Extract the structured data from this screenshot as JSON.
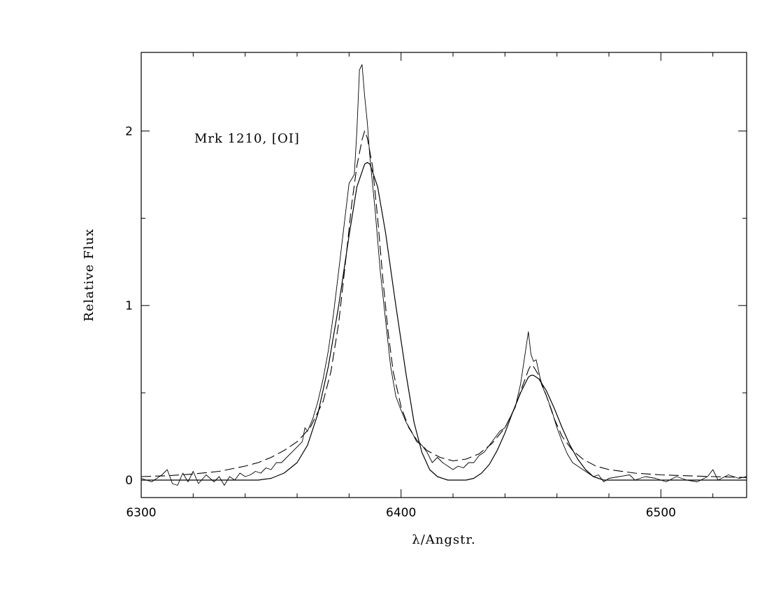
{
  "chart_data": {
    "type": "line",
    "title": "",
    "annotation": "Mrk  1210,  [OI]",
    "xlabel": "λ/Angstr.",
    "ylabel": "Relative  Flux",
    "xlim": [
      6300,
      6533
    ],
    "ylim": [
      -0.1,
      2.45
    ],
    "x_ticks": [
      6300,
      6400,
      6500
    ],
    "y_ticks": [
      0,
      1,
      2
    ],
    "x_minor_step": 20,
    "y_minor_step": 0.5,
    "grid": false,
    "series": [
      {
        "style": "solid-thin",
        "points": [
          [
            6300,
            0.01
          ],
          [
            6304,
            -0.01
          ],
          [
            6308,
            0.03
          ],
          [
            6310,
            0.06
          ],
          [
            6312,
            -0.02
          ],
          [
            6314,
            -0.03
          ],
          [
            6316,
            0.04
          ],
          [
            6318,
            -0.01
          ],
          [
            6320,
            0.05
          ],
          [
            6322,
            -0.02
          ],
          [
            6325,
            0.03
          ],
          [
            6328,
            -0.01
          ],
          [
            6330,
            0.02
          ],
          [
            6332,
            -0.03
          ],
          [
            6334,
            0.02
          ],
          [
            6336,
            0.0
          ],
          [
            6338,
            0.04
          ],
          [
            6340,
            0.02
          ],
          [
            6342,
            0.03
          ],
          [
            6344,
            0.05
          ],
          [
            6346,
            0.04
          ],
          [
            6348,
            0.07
          ],
          [
            6350,
            0.06
          ],
          [
            6352,
            0.1
          ],
          [
            6354,
            0.1
          ],
          [
            6356,
            0.13
          ],
          [
            6358,
            0.16
          ],
          [
            6360,
            0.19
          ],
          [
            6362,
            0.22
          ],
          [
            6363,
            0.3
          ],
          [
            6364,
            0.28
          ],
          [
            6366,
            0.35
          ],
          [
            6368,
            0.45
          ],
          [
            6370,
            0.58
          ],
          [
            6372,
            0.74
          ],
          [
            6374,
            0.95
          ],
          [
            6376,
            1.2
          ],
          [
            6378,
            1.45
          ],
          [
            6380,
            1.7
          ],
          [
            6382,
            1.75
          ],
          [
            6383,
            2.0
          ],
          [
            6384,
            2.35
          ],
          [
            6385,
            2.38
          ],
          [
            6386,
            2.2
          ],
          [
            6387,
            2.05
          ],
          [
            6388,
            1.85
          ],
          [
            6390,
            1.55
          ],
          [
            6392,
            1.2
          ],
          [
            6394,
            0.92
          ],
          [
            6396,
            0.65
          ],
          [
            6398,
            0.48
          ],
          [
            6400,
            0.4
          ],
          [
            6402,
            0.33
          ],
          [
            6404,
            0.28
          ],
          [
            6406,
            0.22
          ],
          [
            6408,
            0.2
          ],
          [
            6410,
            0.16
          ],
          [
            6412,
            0.1
          ],
          [
            6414,
            0.13
          ],
          [
            6416,
            0.1
          ],
          [
            6418,
            0.08
          ],
          [
            6420,
            0.06
          ],
          [
            6422,
            0.08
          ],
          [
            6424,
            0.07
          ],
          [
            6426,
            0.1
          ],
          [
            6428,
            0.1
          ],
          [
            6430,
            0.14
          ],
          [
            6432,
            0.16
          ],
          [
            6434,
            0.2
          ],
          [
            6436,
            0.24
          ],
          [
            6438,
            0.28
          ],
          [
            6440,
            0.3
          ],
          [
            6442,
            0.36
          ],
          [
            6444,
            0.42
          ],
          [
            6446,
            0.55
          ],
          [
            6447,
            0.65
          ],
          [
            6448,
            0.75
          ],
          [
            6449,
            0.85
          ],
          [
            6450,
            0.72
          ],
          [
            6451,
            0.68
          ],
          [
            6452,
            0.69
          ],
          [
            6453,
            0.62
          ],
          [
            6454,
            0.55
          ],
          [
            6456,
            0.48
          ],
          [
            6458,
            0.4
          ],
          [
            6460,
            0.3
          ],
          [
            6462,
            0.22
          ],
          [
            6464,
            0.15
          ],
          [
            6466,
            0.1
          ],
          [
            6468,
            0.08
          ],
          [
            6470,
            0.06
          ],
          [
            6472,
            0.04
          ],
          [
            6474,
            0.02
          ],
          [
            6476,
            0.03
          ],
          [
            6478,
            -0.01
          ],
          [
            6480,
            0.01
          ],
          [
            6484,
            0.02
          ],
          [
            6488,
            0.03
          ],
          [
            6490,
            0.0
          ],
          [
            6494,
            0.02
          ],
          [
            6498,
            0.01
          ],
          [
            6502,
            -0.01
          ],
          [
            6506,
            0.02
          ],
          [
            6510,
            0.0
          ],
          [
            6514,
            -0.01
          ],
          [
            6518,
            0.02
          ],
          [
            6520,
            0.06
          ],
          [
            6522,
            0.0
          ],
          [
            6526,
            0.03
          ],
          [
            6530,
            0.01
          ],
          [
            6533,
            0.02
          ]
        ]
      },
      {
        "style": "dashed",
        "points": [
          [
            6300,
            0.02
          ],
          [
            6310,
            0.025
          ],
          [
            6320,
            0.035
          ],
          [
            6330,
            0.05
          ],
          [
            6340,
            0.08
          ],
          [
            6345,
            0.1
          ],
          [
            6350,
            0.13
          ],
          [
            6355,
            0.17
          ],
          [
            6360,
            0.22
          ],
          [
            6365,
            0.3
          ],
          [
            6370,
            0.45
          ],
          [
            6373,
            0.62
          ],
          [
            6376,
            0.9
          ],
          [
            6379,
            1.3
          ],
          [
            6381,
            1.58
          ],
          [
            6383,
            1.8
          ],
          [
            6385,
            1.95
          ],
          [
            6386,
            2.0
          ],
          [
            6387,
            1.96
          ],
          [
            6389,
            1.8
          ],
          [
            6391,
            1.5
          ],
          [
            6393,
            1.15
          ],
          [
            6395,
            0.85
          ],
          [
            6397,
            0.62
          ],
          [
            6400,
            0.42
          ],
          [
            6403,
            0.3
          ],
          [
            6406,
            0.23
          ],
          [
            6410,
            0.17
          ],
          [
            6415,
            0.13
          ],
          [
            6420,
            0.11
          ],
          [
            6425,
            0.12
          ],
          [
            6430,
            0.15
          ],
          [
            6435,
            0.21
          ],
          [
            6440,
            0.3
          ],
          [
            6444,
            0.42
          ],
          [
            6447,
            0.55
          ],
          [
            6449,
            0.63
          ],
          [
            6450,
            0.66
          ],
          [
            6451,
            0.65
          ],
          [
            6453,
            0.6
          ],
          [
            6456,
            0.48
          ],
          [
            6459,
            0.35
          ],
          [
            6462,
            0.25
          ],
          [
            6466,
            0.17
          ],
          [
            6470,
            0.12
          ],
          [
            6475,
            0.08
          ],
          [
            6480,
            0.06
          ],
          [
            6490,
            0.04
          ],
          [
            6500,
            0.03
          ],
          [
            6510,
            0.025
          ],
          [
            6520,
            0.02
          ],
          [
            6533,
            0.015
          ]
        ]
      },
      {
        "style": "solid",
        "points": [
          [
            6300,
            0.0
          ],
          [
            6345,
            0.0
          ],
          [
            6350,
            0.01
          ],
          [
            6355,
            0.04
          ],
          [
            6360,
            0.1
          ],
          [
            6364,
            0.2
          ],
          [
            6368,
            0.38
          ],
          [
            6372,
            0.65
          ],
          [
            6376,
            1.0
          ],
          [
            6380,
            1.4
          ],
          [
            6383,
            1.68
          ],
          [
            6386,
            1.81
          ],
          [
            6387,
            1.82
          ],
          [
            6388,
            1.81
          ],
          [
            6391,
            1.68
          ],
          [
            6394,
            1.42
          ],
          [
            6398,
            1.0
          ],
          [
            6402,
            0.6
          ],
          [
            6405,
            0.33
          ],
          [
            6408,
            0.16
          ],
          [
            6411,
            0.06
          ],
          [
            6414,
            0.02
          ],
          [
            6418,
            0.0
          ],
          [
            6425,
            0.0
          ],
          [
            6428,
            0.01
          ],
          [
            6431,
            0.04
          ],
          [
            6434,
            0.09
          ],
          [
            6437,
            0.17
          ],
          [
            6440,
            0.27
          ],
          [
            6443,
            0.39
          ],
          [
            6446,
            0.5
          ],
          [
            6449,
            0.59
          ],
          [
            6450,
            0.6
          ],
          [
            6451,
            0.6
          ],
          [
            6453,
            0.58
          ],
          [
            6456,
            0.51
          ],
          [
            6459,
            0.41
          ],
          [
            6462,
            0.3
          ],
          [
            6465,
            0.2
          ],
          [
            6468,
            0.12
          ],
          [
            6471,
            0.06
          ],
          [
            6474,
            0.02
          ],
          [
            6478,
            0.0
          ],
          [
            6533,
            0.0
          ]
        ]
      }
    ]
  }
}
